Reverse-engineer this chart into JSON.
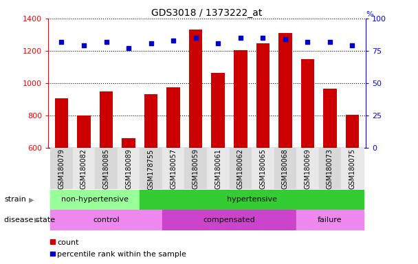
{
  "title": "GDS3018 / 1373222_at",
  "samples": [
    "GSM180079",
    "GSM180082",
    "GSM180085",
    "GSM180089",
    "GSM178755",
    "GSM180057",
    "GSM180059",
    "GSM180061",
    "GSM180062",
    "GSM180065",
    "GSM180068",
    "GSM180069",
    "GSM180073",
    "GSM180075"
  ],
  "counts": [
    905,
    800,
    950,
    660,
    930,
    975,
    1330,
    1065,
    1205,
    1245,
    1310,
    1150,
    965,
    805
  ],
  "percentile_ranks": [
    82,
    79,
    82,
    77,
    81,
    83,
    85,
    81,
    85,
    85,
    84,
    82,
    82,
    79
  ],
  "ylim_left": [
    600,
    1400
  ],
  "ylim_right": [
    0,
    100
  ],
  "yticks_left": [
    600,
    800,
    1000,
    1200,
    1400
  ],
  "yticks_right": [
    0,
    25,
    50,
    75,
    100
  ],
  "bar_color": "#cc0000",
  "dot_color": "#0000cc",
  "strain_groups": [
    {
      "label": "non-hypertensive",
      "start": 0,
      "end": 4,
      "color": "#99ff99"
    },
    {
      "label": "hypertensive",
      "start": 4,
      "end": 14,
      "color": "#33cc33"
    }
  ],
  "disease_groups": [
    {
      "label": "control",
      "start": 0,
      "end": 5,
      "color": "#ee88ee"
    },
    {
      "label": "compensated",
      "start": 5,
      "end": 11,
      "color": "#cc44cc"
    },
    {
      "label": "failure",
      "start": 11,
      "end": 14,
      "color": "#ee88ee"
    }
  ],
  "legend_items": [
    {
      "label": "count",
      "color": "#cc0000"
    },
    {
      "label": "percentile rank within the sample",
      "color": "#0000cc"
    }
  ]
}
